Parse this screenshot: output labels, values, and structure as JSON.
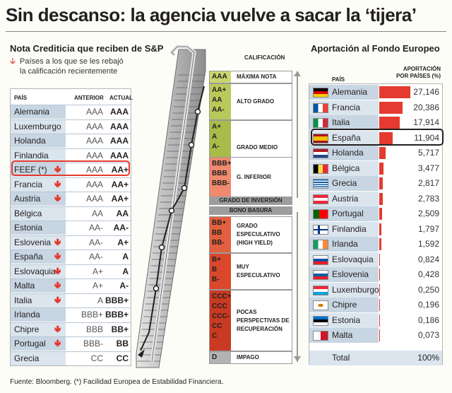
{
  "title": "Sin descanso: la agencia vuelve a sacar la ‘tijera’",
  "source": "Fuente: Bloomberg. (*) Facilidad Europea de Estabilidad Financiera.",
  "left_panel": {
    "title": "Nota Crediticia que reciben de S&P",
    "legend_line1": "Países a los que se les rebajó",
    "legend_line2": "la calificación recientemente",
    "headers": {
      "country": "PAÍS",
      "previous": "ANTERIOR",
      "current": "ACTUAL"
    },
    "highlight": "FEEF (*)"
  },
  "center_panel": {
    "calificacion_label": "CALIFICACIÓN",
    "grado_inversion": "GRADO DE INVERSIÓN",
    "bono_basura": "BONO BASURA",
    "bands": [
      {
        "codes": [
          "AAA"
        ],
        "desc": "MÁXIMA NOTA",
        "color": "#c9d56e"
      },
      {
        "codes": [
          "AA+",
          "AA",
          "AA-"
        ],
        "desc": "ALTO GRADO",
        "color": "#b9c95a"
      },
      {
        "codes": [
          "A+",
          "A",
          "A-"
        ],
        "desc": "GRADO MEDIO",
        "color": "#a8bc4a"
      },
      {
        "codes": [
          "BBB+",
          "BBB",
          "BBB-"
        ],
        "desc": "G. INFERIOR",
        "color": "#ef8a6e"
      },
      {
        "codes": [
          "BB+",
          "BB",
          "BB-"
        ],
        "desc": "GRADO ESPECULATIVO (HIGH YIELD)",
        "color": "#e2603f"
      },
      {
        "codes": [
          "B+",
          "B",
          "B-"
        ],
        "desc": "MUY ESPECULATIVO",
        "color": "#d9482c"
      },
      {
        "codes": [
          "CCC+",
          "CCC",
          "CCC-",
          "CC",
          "C"
        ],
        "desc": "POCAS PERSPECTIVAS DE RECUPERACIÓN",
        "color": "#c93a22"
      },
      {
        "codes": [
          "D"
        ],
        "desc": "IMPAGO",
        "color": "#b3b3b3"
      }
    ]
  },
  "right_panel": {
    "title": "Aportación al Fondo Europeo",
    "header_country": "PAÍS",
    "header_value_line1": "APORTACIÓN",
    "header_value_line2": "POR PAÍSES (%)",
    "total_label": "Total",
    "total_value": "100%",
    "highlight": "España"
  },
  "chart_data": [
    {
      "type": "table",
      "title": "Nota Crediticia que reciben de S&P",
      "columns": [
        "PAÍS",
        "ANTERIOR",
        "ACTUAL"
      ],
      "rows": [
        {
          "country": "Alemania",
          "previous": "AAA",
          "current": "AAA",
          "downgraded": false
        },
        {
          "country": "Luxemburgo",
          "previous": "AAA",
          "current": "AAA",
          "downgraded": false
        },
        {
          "country": "Holanda",
          "previous": "AAA",
          "current": "AAA",
          "downgraded": false
        },
        {
          "country": "Finlandia",
          "previous": "AAA",
          "current": "AAA",
          "downgraded": false
        },
        {
          "country": "FEEF (*)",
          "previous": "AAA",
          "current": "AA+",
          "downgraded": true
        },
        {
          "country": "Francia",
          "previous": "AAA",
          "current": "AA+",
          "downgraded": true
        },
        {
          "country": "Austria",
          "previous": "AAA",
          "current": "AA+",
          "downgraded": true
        },
        {
          "country": "Bélgica",
          "previous": "AA",
          "current": "AA",
          "downgraded": false
        },
        {
          "country": "Estonia",
          "previous": "AA-",
          "current": "AA-",
          "downgraded": false
        },
        {
          "country": "Eslovenia",
          "previous": "AA-",
          "current": "A+",
          "downgraded": true
        },
        {
          "country": "España",
          "previous": "AA-",
          "current": "A",
          "downgraded": true
        },
        {
          "country": "Eslovaquia",
          "previous": "A+",
          "current": "A",
          "downgraded": true
        },
        {
          "country": "Malta",
          "previous": "A+",
          "current": "A-",
          "downgraded": true
        },
        {
          "country": "Italia",
          "previous": "A",
          "current": "BBB+",
          "downgraded": true
        },
        {
          "country": "Irlanda",
          "previous": "BBB+",
          "current": "BBB+",
          "downgraded": false
        },
        {
          "country": "Chipre",
          "previous": "BBB",
          "current": "BB+",
          "downgraded": true
        },
        {
          "country": "Portugal",
          "previous": "BBB-",
          "current": "BB",
          "downgraded": true
        },
        {
          "country": "Grecia",
          "previous": "CC",
          "current": "CC",
          "downgraded": false
        }
      ]
    },
    {
      "type": "bar",
      "title": "Aportación al Fondo Europeo",
      "categories": [
        "Alemania",
        "Francia",
        "Italia",
        "España",
        "Holanda",
        "Bélgica",
        "Grecia",
        "Austria",
        "Portugal",
        "Finlandia",
        "Irlanda",
        "Eslovaquia",
        "Eslovenia",
        "Luxemburgo",
        "Chipre",
        "Estonia",
        "Malta"
      ],
      "value_labels": [
        "27,146",
        "20,386",
        "17,914",
        "11,904",
        "5,717",
        "3,477",
        "2,817",
        "2,783",
        "2,509",
        "1,797",
        "1,592",
        "0,824",
        "0,428",
        "0,250",
        "0,196",
        "0,186",
        "0,073"
      ],
      "values": [
        27.146,
        20.386,
        17.914,
        11.904,
        5.717,
        3.477,
        2.817,
        2.783,
        2.509,
        1.797,
        1.592,
        0.824,
        0.428,
        0.25,
        0.196,
        0.186,
        0.073
      ],
      "flags": [
        "germany",
        "france",
        "italy",
        "spain",
        "netherlands",
        "belgium",
        "greece",
        "austria",
        "portugal",
        "finland",
        "ireland",
        "slovakia",
        "slovenia",
        "luxembourg",
        "cyprus",
        "estonia",
        "malta"
      ],
      "ylabel": "APORTACIÓN POR PAÍSES (%)",
      "xlabel": "PAÍS",
      "bar_color": "#e53a2f"
    }
  ]
}
